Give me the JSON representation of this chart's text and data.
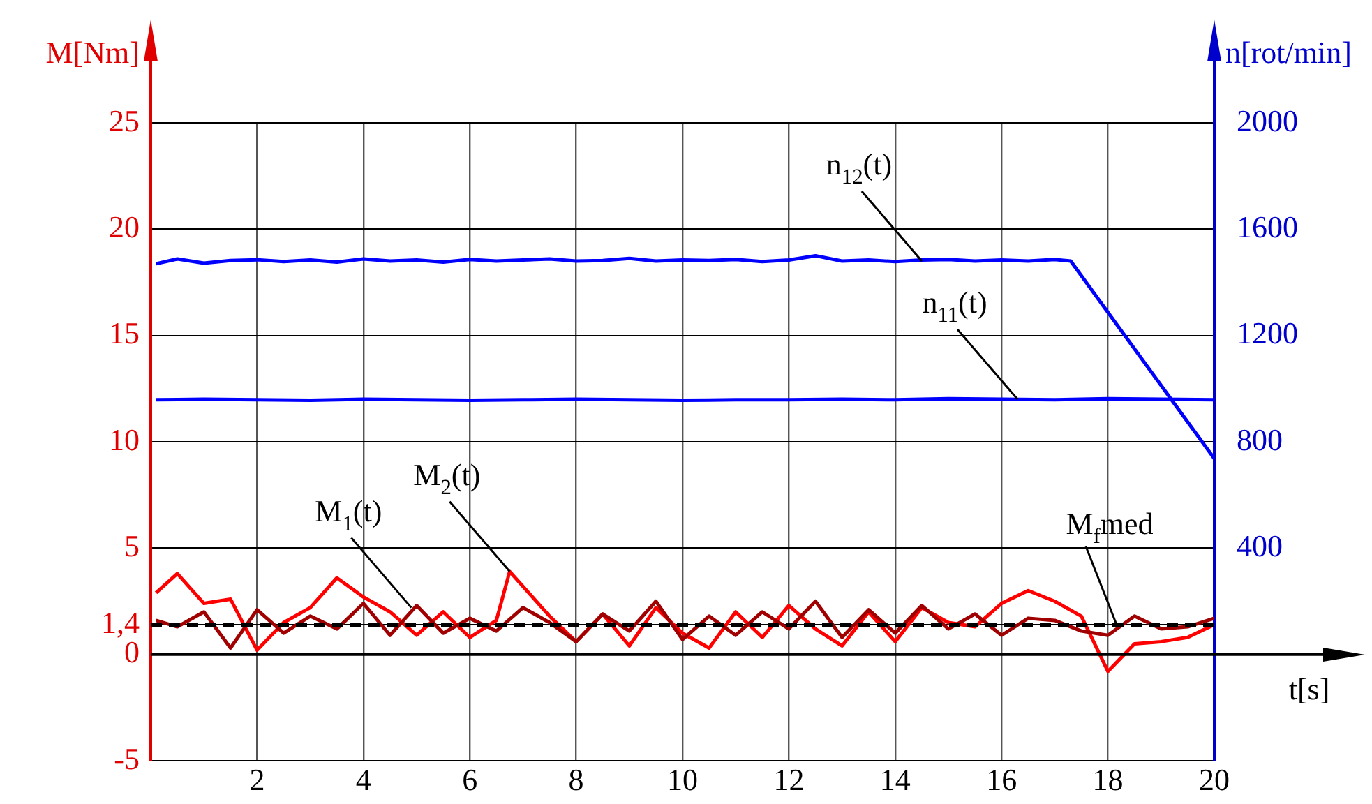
{
  "chart_data": {
    "type": "line",
    "xlabel": "t[s]",
    "ylabel": "M[Nm]",
    "y2label": "n[rot/min]",
    "xlim": [
      0,
      20
    ],
    "xticks": [
      2,
      4,
      6,
      8,
      10,
      12,
      14,
      16,
      18,
      20
    ],
    "ylim": [
      -5,
      25
    ],
    "yticks": [
      -5,
      0,
      {
        "value": 1.4,
        "label": "1,4"
      },
      5,
      10,
      15,
      20,
      25
    ],
    "y2lim": [
      -400,
      2000
    ],
    "y2ticks": [
      400,
      800,
      1200,
      1600,
      2000
    ],
    "grid": true,
    "legend": false,
    "marker": "none",
    "line_style": "solid",
    "series": [
      {
        "color": "#0000ff",
        "axis": "y2",
        "x": [
          0.1,
          0.5,
          1,
          1.5,
          2,
          2.5,
          3,
          3.5,
          4,
          4.5,
          5,
          5.5,
          6,
          6.5,
          7,
          7.5,
          8,
          8.5,
          9,
          9.5,
          10,
          10.5,
          11,
          11.5,
          12,
          12.5,
          13,
          13.5,
          14,
          14.5,
          15,
          15.5,
          16,
          16.5,
          17,
          17.3,
          18,
          19,
          20
        ],
        "values": [
          1470,
          1488,
          1472,
          1482,
          1485,
          1478,
          1484,
          1476,
          1488,
          1480,
          1484,
          1476,
          1486,
          1480,
          1484,
          1488,
          1480,
          1482,
          1490,
          1480,
          1484,
          1482,
          1486,
          1478,
          1484,
          1500,
          1480,
          1484,
          1478,
          1484,
          1486,
          1480,
          1484,
          1480,
          1486,
          1480,
          1287,
          1012,
          737
        ]
      },
      {
        "color": "#0000ff",
        "axis": "y2",
        "x": [
          0.1,
          1,
          2,
          3,
          4,
          5,
          6,
          7,
          8,
          9,
          10,
          11,
          12,
          13,
          14,
          15,
          16,
          17,
          18,
          19,
          20
        ],
        "values": [
          958,
          960,
          958,
          956,
          960,
          958,
          956,
          958,
          960,
          958,
          956,
          958,
          958,
          960,
          958,
          962,
          960,
          958,
          962,
          960,
          958
        ]
      },
      {
        "color": "#a00000",
        "x": [
          0.1,
          0.5,
          1,
          1.5,
          2,
          2.5,
          3,
          3.5,
          4,
          4.5,
          5,
          5.5,
          6,
          6.5,
          7,
          7.5,
          8,
          8.5,
          9,
          9.5,
          10,
          10.5,
          11,
          11.5,
          12,
          12.5,
          13,
          13.5,
          14,
          14.5,
          15,
          15.5,
          16,
          16.5,
          17,
          17.5,
          18,
          18.5,
          19,
          19.5,
          20
        ],
        "values": [
          1.6,
          1.3,
          2.0,
          0.3,
          2.1,
          1.0,
          1.8,
          1.2,
          2.4,
          0.9,
          2.3,
          1.0,
          1.7,
          1.1,
          2.2,
          1.5,
          0.6,
          1.9,
          1.1,
          2.5,
          0.7,
          1.8,
          0.9,
          2.0,
          1.2,
          2.5,
          0.8,
          2.1,
          1.0,
          2.3,
          1.2,
          1.9,
          0.9,
          1.7,
          1.6,
          1.1,
          0.9,
          1.8,
          1.2,
          1.3,
          1.7
        ]
      },
      {
        "color": "#ff0000",
        "x": [
          0.1,
          0.5,
          1,
          1.5,
          2,
          2.5,
          3,
          3.5,
          4,
          4.5,
          5,
          5.5,
          6,
          6.5,
          6.75,
          7.5,
          8,
          8.5,
          9,
          9.5,
          10,
          10.5,
          11,
          11.5,
          12,
          12.5,
          13,
          13.5,
          14,
          14.5,
          15,
          15.5,
          16,
          16.5,
          17,
          17.5,
          18,
          18.5,
          19,
          19.5,
          20
        ],
        "values": [
          2.9,
          3.8,
          2.4,
          2.6,
          0.2,
          1.5,
          2.2,
          3.6,
          2.7,
          2.0,
          0.9,
          2.0,
          0.8,
          1.6,
          3.9,
          1.8,
          0.6,
          1.9,
          0.4,
          2.2,
          1.0,
          0.3,
          2.0,
          0.8,
          2.3,
          1.2,
          0.4,
          2.0,
          0.6,
          2.2,
          1.5,
          1.3,
          2.4,
          3.0,
          2.5,
          1.8,
          -0.8,
          0.5,
          0.6,
          0.8,
          1.4
        ]
      }
    ],
    "ref_lines": [
      {
        "axis": "y",
        "value": 1.4,
        "label": "M$_{f}$med",
        "color": "#000000",
        "line_style": "dashed"
      }
    ],
    "annotations": [
      {
        "text": "n$_{12}$(t)",
        "x": 14.5,
        "y": 18.5
      },
      {
        "text": "n$_{11}$(t)",
        "x": 16.3,
        "y": 12
      },
      {
        "text": "M$_{1}$(t)",
        "x": 4.9,
        "y": 2.2
      },
      {
        "text": "M$_{2}$(t)",
        "x": 6.75,
        "y": 3.9
      }
    ]
  }
}
